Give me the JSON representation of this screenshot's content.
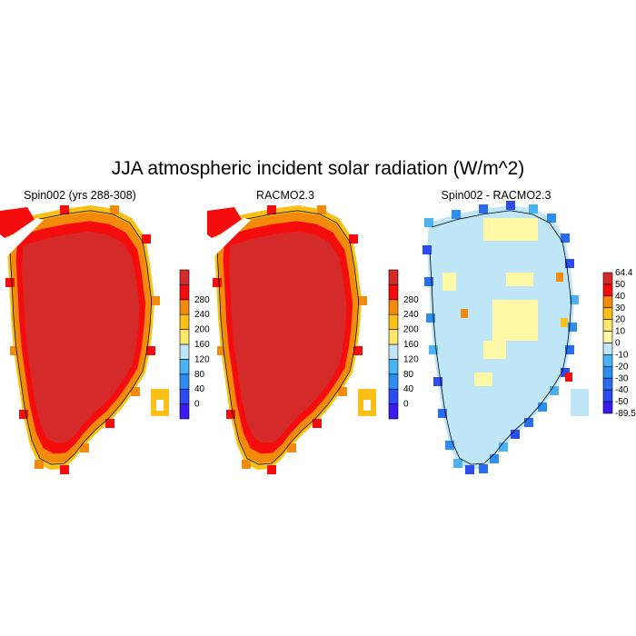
{
  "figure": {
    "title": "JJA atmospheric incident solar radiation (W/m^2)",
    "panels": [
      {
        "id": "spin002",
        "title": "Spin002 (yrs 288-308)"
      },
      {
        "id": "racmo",
        "title": "RACMO2.3"
      },
      {
        "id": "diff",
        "title": "Spin002 - RACMO2.3"
      }
    ]
  },
  "colorbars": {
    "absolute": {
      "labels": [
        "0",
        "40",
        "80",
        "120",
        "160",
        "200",
        "240",
        "280"
      ],
      "colors": [
        "#3e1af2",
        "#2a4cf0",
        "#2e8ef0",
        "#49b3f3",
        "#bfe6f6",
        "#fbe86a",
        "#fac016",
        "#f48a0c",
        "#f50c0c",
        "#d42a2a"
      ]
    },
    "difference": {
      "labels": [
        "64.4",
        "50",
        "40",
        "30",
        "20",
        "10",
        "0",
        "-10",
        "-20",
        "-30",
        "-40",
        "-50",
        "-89.5"
      ],
      "colors": [
        "#d42a2a",
        "#f50c0c",
        "#f48a0c",
        "#fac016",
        "#fbe86a",
        "#fff8a6",
        "#bfe6f6",
        "#49b3f3",
        "#2e8ef0",
        "#2a6cf0",
        "#2a4cf0",
        "#3e1af2"
      ]
    }
  },
  "map_colors": {
    "interior": "#d42a2a",
    "ring1": "#f50c0c",
    "ring2": "#f48a0c",
    "ring3": "#fac016",
    "diff_base": "#bfe6f6",
    "diff_positive": "#fff8a6",
    "diff_negative": "#49b3f3",
    "coast_line": "#000000"
  }
}
